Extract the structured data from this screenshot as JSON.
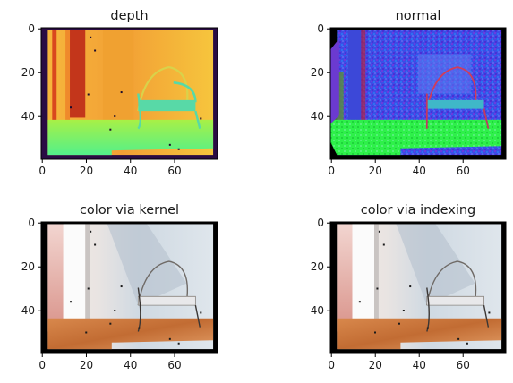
{
  "chart_data": [
    {
      "type": "heatmap",
      "title": "depth",
      "x_ticks": [
        0,
        20,
        40,
        60
      ],
      "y_ticks": [
        0,
        20,
        40
      ],
      "xlim": [
        -0.5,
        79.5
      ],
      "ylim": [
        59.5,
        -0.5
      ],
      "image_shape": [
        60,
        80
      ],
      "colormap": "turbo",
      "description_colors": {
        "background": "#2a0c44",
        "near": "#c3361b",
        "far": "#f3c43c",
        "floor": "#6bf26b"
      }
    },
    {
      "type": "heatmap",
      "title": "normal",
      "x_ticks": [
        0,
        20,
        40,
        60
      ],
      "y_ticks": [
        0,
        20,
        40
      ],
      "xlim": [
        -0.5,
        79.5
      ],
      "ylim": [
        59.5,
        -0.5
      ],
      "image_shape": [
        60,
        80
      ],
      "colormap": "rgb-normal"
    },
    {
      "type": "heatmap",
      "title": "color via kernel",
      "x_ticks": [
        0,
        20,
        40,
        60
      ],
      "y_ticks": [
        0,
        20,
        40
      ],
      "xlim": [
        -0.5,
        79.5
      ],
      "ylim": [
        59.5,
        -0.5
      ],
      "image_shape": [
        60,
        80
      ],
      "colormap": "rgb"
    },
    {
      "type": "heatmap",
      "title": "color via indexing",
      "x_ticks": [
        0,
        20,
        40,
        60
      ],
      "y_ticks": [
        0,
        20,
        40
      ],
      "xlim": [
        -0.5,
        79.5
      ],
      "ylim": [
        59.5,
        -0.5
      ],
      "image_shape": [
        60,
        80
      ],
      "colormap": "rgb"
    }
  ]
}
